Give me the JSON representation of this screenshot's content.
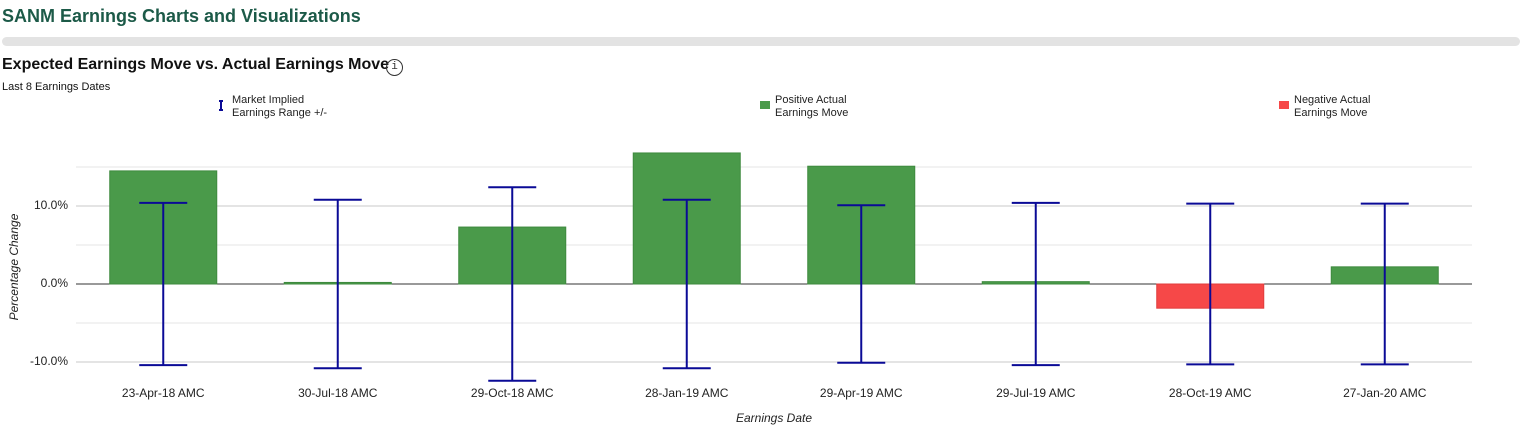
{
  "header": {
    "title": "SANM Earnings Charts and Visualizations"
  },
  "chart_data": {
    "type": "bar",
    "title": "Expected Earnings Move vs. Actual Earnings Move",
    "info_icon": "i",
    "subtitle": "Last 8 Earnings Dates",
    "x_label": "Earnings Date",
    "y_label": "Percentage Change",
    "categories": [
      "23-Apr-18 AMC",
      "30-Jul-18 AMC",
      "29-Oct-18 AMC",
      "28-Jan-19 AMC",
      "29-Apr-19 AMC",
      "29-Jul-19 AMC",
      "28-Oct-19 AMC",
      "27-Jan-20 AMC"
    ],
    "values": [
      14.5,
      0.2,
      7.3,
      16.8,
      15.1,
      0.3,
      -3.1,
      2.2
    ],
    "error": [
      10.4,
      10.8,
      12.4,
      10.8,
      10.1,
      10.4,
      10.3,
      10.3
    ],
    "legend": [
      {
        "name": "Market Implied Earnings Range +/-",
        "color": "#0a0a96"
      },
      {
        "name": "Positive Actual Earnings Move",
        "color": "#4a9a4a"
      },
      {
        "name": "Negative Actual Earnings Move",
        "color": "#f64848"
      }
    ],
    "ylim": [
      -12.5,
      20
    ],
    "yticks": [
      {
        "value": -10,
        "label": "-10.0%"
      },
      {
        "value": 0,
        "label": "0.0%"
      },
      {
        "value": 10,
        "label": "10.0%"
      }
    ],
    "minor_grid": [
      -5,
      5,
      15
    ],
    "grid": true
  }
}
